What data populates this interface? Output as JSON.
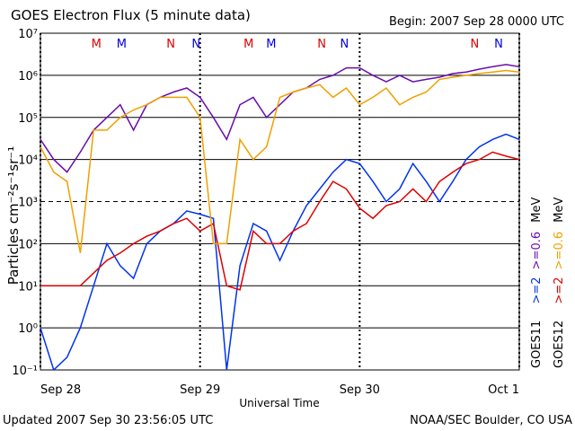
{
  "chart_data": {
    "type": "line",
    "title": "GOES Electron Flux (5 minute data)",
    "subtitle": "Begin: 2007 Sep 28 0000 UTC",
    "xlabel": "Universal Time",
    "ylabel": "Particles cm⁻²s⁻¹sr⁻¹",
    "footer_left": "Updated 2007 Sep 30 23:56:05 UTC",
    "footer_right": "NOAA/SEC Boulder, CO USA",
    "unit": "MeV",
    "log_y": true,
    "grid": true,
    "dashed_grid": [
      1000
    ],
    "xlim": [
      0,
      72
    ],
    "xticks": [
      {
        "value": 0,
        "label": "Sep 28"
      },
      {
        "value": 24,
        "label": "Sep 29"
      },
      {
        "value": 48,
        "label": "Sep 30"
      },
      {
        "value": 72,
        "label": "Oct 1"
      }
    ],
    "ylim": [
      0.1,
      10000000
    ],
    "yticks": [
      {
        "value": 0.1,
        "label": "10⁻¹"
      },
      {
        "value": 1,
        "label": "10⁰"
      },
      {
        "value": 10,
        "label": "10¹"
      },
      {
        "value": 100,
        "label": "10²"
      },
      {
        "value": 1000,
        "label": "10³"
      },
      {
        "value": 10000,
        "label": "10⁴"
      },
      {
        "value": 100000,
        "label": "10⁵"
      },
      {
        "value": 1000000,
        "label": "10⁶"
      },
      {
        "value": 10000000,
        "label": "10⁷"
      }
    ],
    "annotations": [
      {
        "text": "M",
        "x": 8.4,
        "color": "#dd0000"
      },
      {
        "text": "M",
        "x": 12.2,
        "color": "#0000dd"
      },
      {
        "text": "N",
        "x": 19.6,
        "color": "#dd0000"
      },
      {
        "text": "N",
        "x": 23.4,
        "color": "#0000dd"
      },
      {
        "text": "M",
        "x": 31.3,
        "color": "#dd0000"
      },
      {
        "text": "M",
        "x": 34.7,
        "color": "#0000dd"
      },
      {
        "text": "N",
        "x": 42.3,
        "color": "#dd0000"
      },
      {
        "text": "N",
        "x": 45.7,
        "color": "#0000dd"
      },
      {
        "text": "N",
        "x": 65.3,
        "color": "#dd0000"
      },
      {
        "text": "N",
        "x": 68.9,
        "color": "#0000dd"
      }
    ],
    "x": [
      0,
      2,
      4,
      6,
      8,
      10,
      12,
      14,
      16,
      18,
      20,
      22,
      24,
      26,
      28,
      30,
      32,
      34,
      36,
      38,
      40,
      42,
      44,
      46,
      48,
      50,
      52,
      54,
      56,
      58,
      60,
      62,
      64,
      66,
      68,
      70,
      72
    ],
    "series": [
      {
        "name": ">=2",
        "satellite": "GOES11",
        "color": "#0033ee",
        "values": [
          1,
          0.1,
          0.2,
          1,
          10,
          100,
          30,
          15,
          100,
          200,
          300,
          600,
          500,
          400,
          0.1,
          30,
          300,
          200,
          40,
          200,
          800,
          2000,
          5000,
          10000,
          8000,
          3000,
          1000,
          2000,
          8000,
          3000,
          1000,
          3000,
          10000,
          20000,
          30000,
          40000,
          30000
        ]
      },
      {
        "name": ">=0.6",
        "satellite": "GOES11",
        "color": "#6a0dad",
        "values": [
          30000,
          10000,
          5000,
          15000,
          50000,
          100000,
          200000,
          50000,
          200000,
          300000,
          400000,
          500000,
          300000,
          100000,
          30000,
          200000,
          300000,
          100000,
          200000,
          400000,
          500000,
          800000,
          1000000,
          1500000,
          1500000,
          1000000,
          700000,
          1000000,
          700000,
          800000,
          900000,
          1100000,
          1200000,
          1400000,
          1600000,
          1800000,
          1600000
        ]
      },
      {
        "name": ">=2",
        "satellite": "GOES12",
        "color": "#dd0000",
        "values": [
          10,
          10,
          10,
          10,
          20,
          40,
          60,
          100,
          150,
          200,
          300,
          400,
          200,
          300,
          10,
          8,
          200,
          100,
          100,
          200,
          300,
          1000,
          3000,
          2000,
          700,
          400,
          800,
          1000,
          2000,
          1000,
          3000,
          5000,
          8000,
          10000,
          15000,
          12000,
          10000
        ]
      },
      {
        "name": ">=0.6",
        "satellite": "GOES12",
        "color": "#f0a000",
        "values": [
          20000,
          5000,
          3000,
          60,
          50000,
          50000,
          100000,
          150000,
          200000,
          300000,
          300000,
          300000,
          100000,
          100,
          100,
          30000,
          10000,
          20000,
          300000,
          400000,
          500000,
          600000,
          300000,
          500000,
          200000,
          300000,
          500000,
          200000,
          300000,
          400000,
          800000,
          900000,
          1000000,
          1100000,
          1200000,
          1300000,
          1200000
        ]
      }
    ]
  }
}
